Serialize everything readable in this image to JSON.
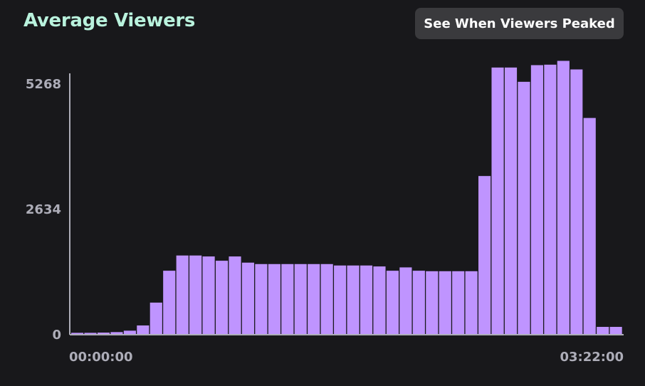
{
  "header": {
    "title": "Average Viewers",
    "peak_button_label": "See When Viewers Peaked"
  },
  "colors": {
    "background": "#18181b",
    "title": "#b9f2dd",
    "bar": "#bf94ff",
    "axis": "#adadb8",
    "button_bg": "#3a3a3d"
  },
  "chart_data": {
    "type": "bar",
    "ylabel": "",
    "xlabel": "",
    "ylim": [
      0,
      5268
    ],
    "yticks": [
      "5268",
      "2634",
      "0"
    ],
    "yticks_values": [
      5268,
      2634,
      0
    ],
    "xtick_labels": [
      "00:00:00",
      "03:22:00"
    ],
    "grid": false,
    "values": [
      25,
      25,
      30,
      40,
      70,
      180,
      660,
      1330,
      1650,
      1650,
      1630,
      1540,
      1630,
      1500,
      1470,
      1470,
      1470,
      1470,
      1470,
      1470,
      1440,
      1440,
      1440,
      1420,
      1330,
      1400,
      1330,
      1320,
      1320,
      1320,
      1320,
      3320,
      5600,
      5600,
      5300,
      5650,
      5660,
      5740,
      5560,
      4540,
      150,
      150
    ]
  }
}
